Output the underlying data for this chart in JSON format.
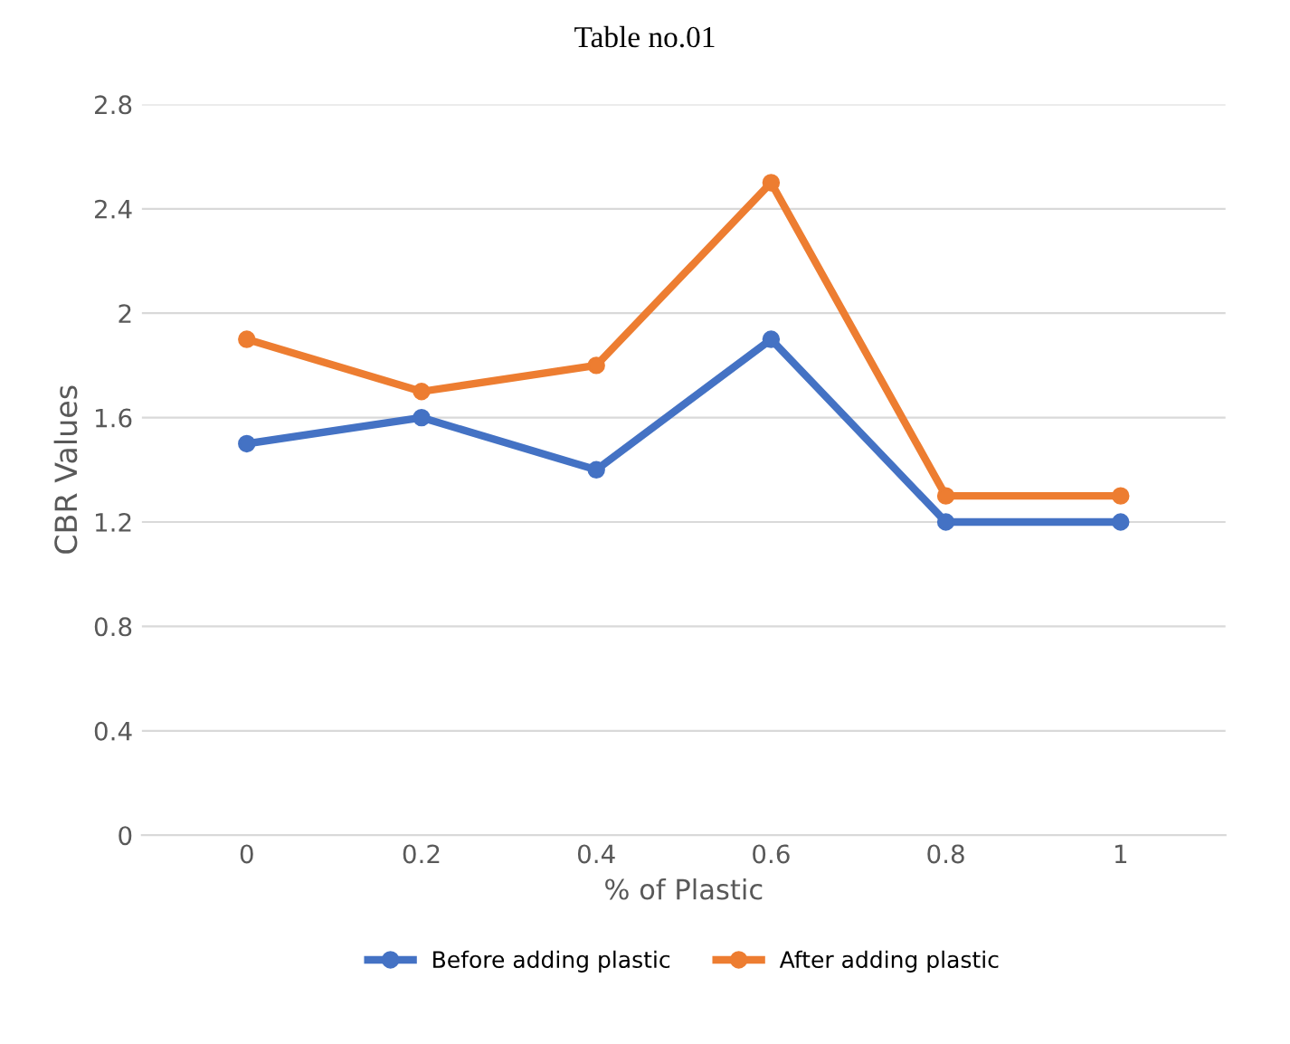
{
  "chart_data": {
    "type": "line",
    "annotations": [
      "Table no.01"
    ],
    "xlabel": "% of Plastic",
    "ylabel": "CBR Values",
    "categories": [
      "0",
      "0.2",
      "0.4",
      "0.6",
      "0.8",
      "1"
    ],
    "series": [
      {
        "name": "Before adding plastic",
        "color": "#4472c4",
        "values": [
          1.5,
          1.6,
          1.4,
          1.9,
          1.2,
          1.2
        ]
      },
      {
        "name": "After adding plastic",
        "color": "#ed7d31",
        "values": [
          1.9,
          1.7,
          1.8,
          2.5,
          1.3,
          1.3
        ]
      }
    ],
    "ylim": [
      0,
      2.8
    ],
    "yticks": [
      0,
      0.4,
      0.8,
      1.2,
      1.6,
      2,
      2.4,
      2.8
    ],
    "grid": "y",
    "legend": "bottom",
    "marker": "circle",
    "line_style": "solid"
  }
}
